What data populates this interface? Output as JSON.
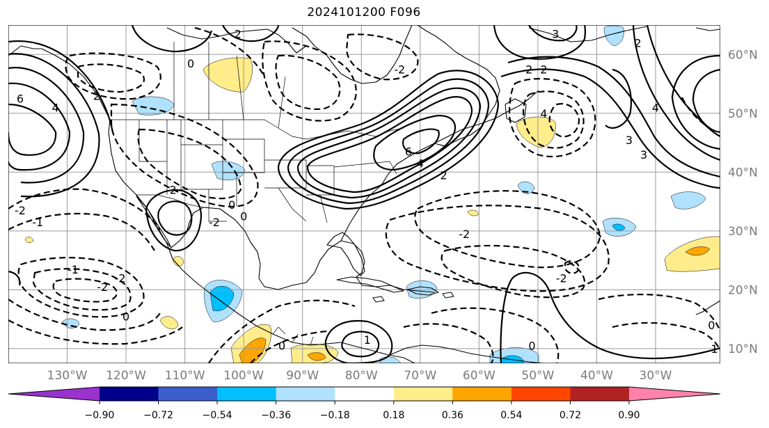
{
  "title": "2024101200 F096",
  "map": {
    "lon_range": [
      -140,
      -19
    ],
    "lat_range": [
      7.5,
      65
    ],
    "lat_ticks": [
      {
        "value": 10,
        "label": "10°N"
      },
      {
        "value": 20,
        "label": "20°N"
      },
      {
        "value": 30,
        "label": "30°N"
      },
      {
        "value": 40,
        "label": "40°N"
      },
      {
        "value": 50,
        "label": "50°N"
      },
      {
        "value": 60,
        "label": "60°N"
      }
    ],
    "lon_ticks": [
      {
        "value": -130,
        "label": "130°W"
      },
      {
        "value": -120,
        "label": "120°W"
      },
      {
        "value": -110,
        "label": "110°W"
      },
      {
        "value": -100,
        "label": "100°W"
      },
      {
        "value": -90,
        "label": "90°W"
      },
      {
        "value": -80,
        "label": "80°W"
      },
      {
        "value": -70,
        "label": "70°W"
      },
      {
        "value": -60,
        "label": "60°W"
      },
      {
        "value": -50,
        "label": "50°W"
      },
      {
        "value": -40,
        "label": "40°W"
      },
      {
        "value": -30,
        "label": "30°W"
      }
    ],
    "grid": true,
    "contour_labels": [
      {
        "text": "2",
        "lon": -101,
        "lat": 63.5
      },
      {
        "text": "0",
        "lon": -109,
        "lat": 58.5
      },
      {
        "text": "6",
        "lon": -138,
        "lat": 52.5
      },
      {
        "text": "4",
        "lon": -132,
        "lat": 51
      },
      {
        "text": "2",
        "lon": -125,
        "lat": 53
      },
      {
        "text": "2",
        "lon": -112,
        "lat": 37
      },
      {
        "text": "-2",
        "lon": -105,
        "lat": 31.5
      },
      {
        "text": "0",
        "lon": -102,
        "lat": 34.5
      },
      {
        "text": "-1",
        "lon": -135,
        "lat": 31.5
      },
      {
        "text": "-2",
        "lon": -138,
        "lat": 33.5
      },
      {
        "text": "0",
        "lon": -100,
        "lat": 32.5
      },
      {
        "text": "-1",
        "lon": -129,
        "lat": 23.5
      },
      {
        "text": "-2",
        "lon": -121,
        "lat": 22
      },
      {
        "text": "-2",
        "lon": -124,
        "lat": 20.5
      },
      {
        "text": "0",
        "lon": -120,
        "lat": 15.5
      },
      {
        "text": "6",
        "lon": -72,
        "lat": 43.5
      },
      {
        "text": "4",
        "lon": -70,
        "lat": 41.5
      },
      {
        "text": "2",
        "lon": -66,
        "lat": 39.5
      },
      {
        "text": "4",
        "lon": -49,
        "lat": 50
      },
      {
        "text": "2",
        "lon": -51.5,
        "lat": 57.5
      },
      {
        "text": "2",
        "lon": -49,
        "lat": 57.5
      },
      {
        "text": "3",
        "lon": -47,
        "lat": 63.5
      },
      {
        "text": "-2",
        "lon": -73.5,
        "lat": 57.5
      },
      {
        "text": "-2",
        "lon": -62.5,
        "lat": 29.5
      },
      {
        "text": "-2",
        "lon": -46,
        "lat": 22
      },
      {
        "text": "0",
        "lon": -51,
        "lat": 10.5
      },
      {
        "text": "0",
        "lon": -20.5,
        "lat": 14
      },
      {
        "text": "1",
        "lon": -20,
        "lat": 10
      },
      {
        "text": "3",
        "lon": -34.5,
        "lat": 45.5
      },
      {
        "text": "3",
        "lon": -32,
        "lat": 43
      },
      {
        "text": "4",
        "lon": -30,
        "lat": 51
      },
      {
        "text": "1",
        "lon": -79,
        "lat": 11.5
      },
      {
        "text": "0",
        "lon": -93.5,
        "lat": 10.5
      },
      {
        "text": "2",
        "lon": -33,
        "lat": 62
      }
    ]
  },
  "colorbar": {
    "colors": [
      "#9a32cd",
      "#00008b",
      "#3a5fcd",
      "#00bfff",
      "#b0e2ff",
      "#ffffff",
      "#ffec8b",
      "#ffa500",
      "#ff4500",
      "#b22222",
      "#ff82ab"
    ],
    "ticks": [
      "−0.90",
      "−0.72",
      "−0.54",
      "−0.36",
      "−0.18",
      "0.18",
      "0.36",
      "0.54",
      "0.72",
      "0.90"
    ]
  }
}
